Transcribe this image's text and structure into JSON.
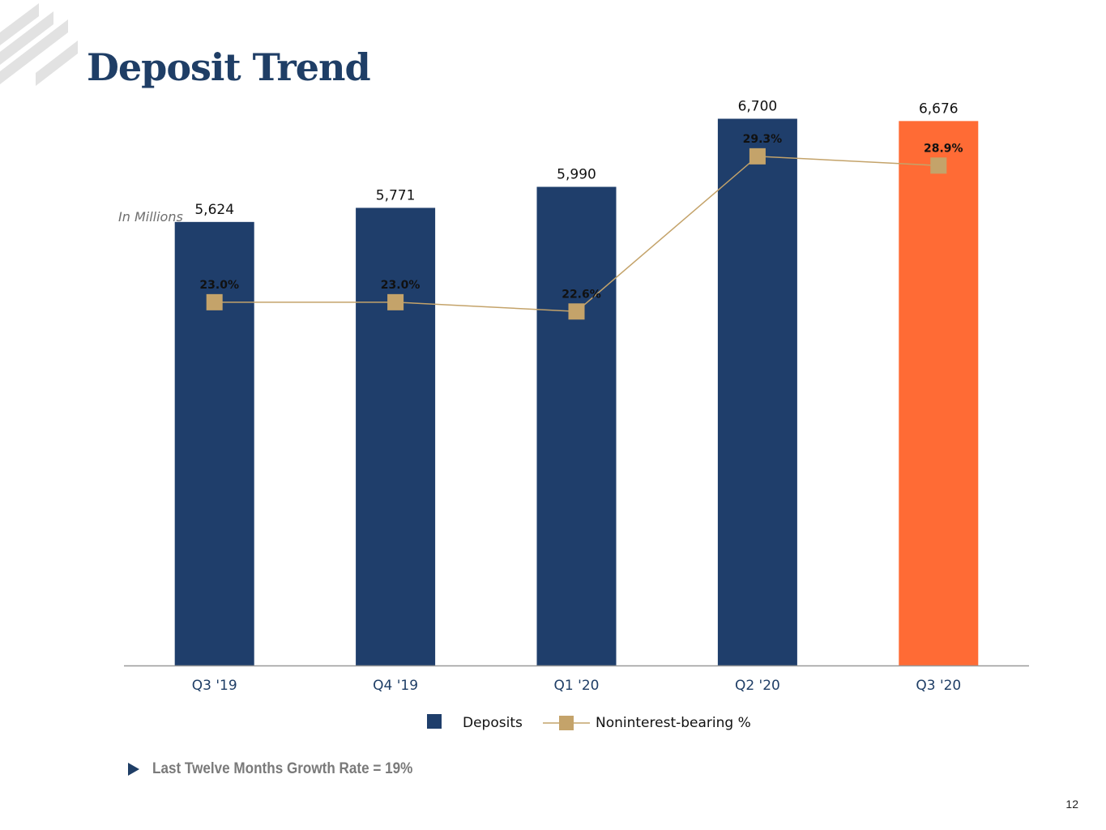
{
  "slide": {
    "title": "Deposit Trend",
    "units_note": "In Millions",
    "bullet_text": "Last Twelve Months Growth Rate = 19%",
    "page_number": "12"
  },
  "colors": {
    "bar": "#1f3e6b",
    "bar_highlight": "#ff6b35",
    "line": "#c4a36a",
    "axis_label": "#1f3e66",
    "title": "#1f3e66"
  },
  "chart_data": {
    "type": "bar",
    "categories": [
      "Q3 '19",
      "Q4 '19",
      "Q1 '20",
      "Q2 '20",
      "Q3 '20"
    ],
    "series": [
      {
        "name": "Deposits",
        "type": "bar",
        "values": [
          5624,
          5771,
          5990,
          6700,
          6676
        ],
        "labels": [
          "5,624",
          "5,771",
          "5,990",
          "6,700",
          "6,676"
        ],
        "highlight_index": 4
      },
      {
        "name": "Noninterest-bearing %",
        "type": "line",
        "values": [
          23.0,
          23.0,
          22.6,
          29.3,
          28.9
        ],
        "labels": [
          "23.0%",
          "23.0%",
          "22.6%",
          "29.3%",
          "28.9%"
        ]
      }
    ],
    "bar_axis_range": [
      1000,
      7000
    ],
    "line_axis_range": [
      0,
      35
    ],
    "grid": false,
    "legend_position": "bottom"
  }
}
